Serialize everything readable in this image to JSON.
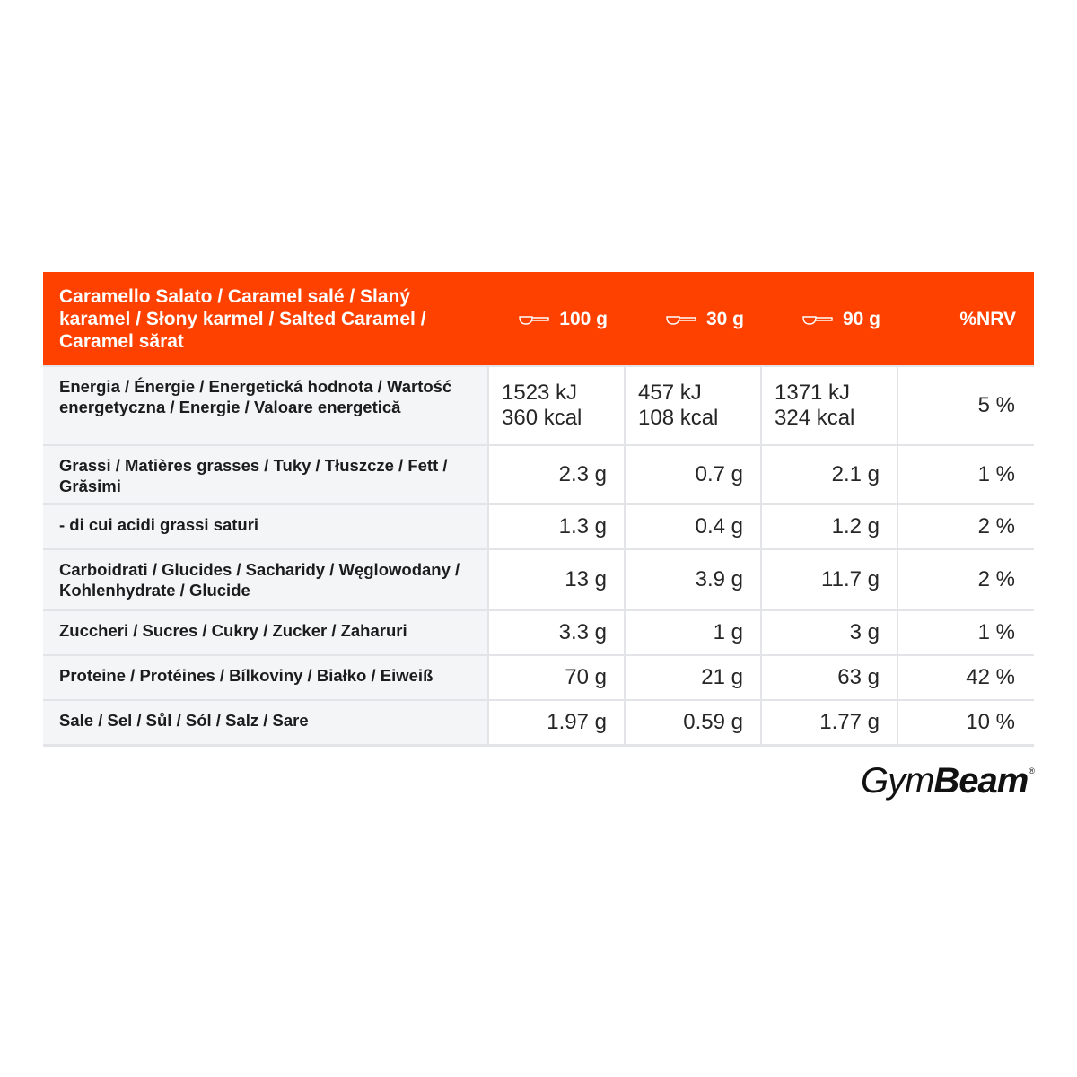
{
  "header": {
    "product": "Caramello Salato / Caramel salé / Slaný karamel / Słony karmel / Salted Caramel / Caramel sărat",
    "col1": "100 g",
    "col2": "30 g",
    "col3": "90 g",
    "col4": "%NRV",
    "serving_icon": "scoop-icon"
  },
  "rows": [
    {
      "label": "Energia / Énergie / Energetická hodnota / Wartość energetyczna / Energie / Valoare energetică",
      "v1a": "1523 kJ",
      "v1b": "360 kcal",
      "v2a": "457 kJ",
      "v2b": "108 kcal",
      "v3a": "1371 kJ",
      "v3b": "324 kcal",
      "nrv": "5 %"
    },
    {
      "label": "Grassi / Matières grasses / Tuky / Tłuszcze / Fett / Grăsimi",
      "v1": "2.3 g",
      "v2": "0.7 g",
      "v3": "2.1 g",
      "nrv": "1 %"
    },
    {
      "label": "- di cui acidi grassi saturi",
      "v1": "1.3 g",
      "v2": "0.4 g",
      "v3": "1.2 g",
      "nrv": "2 %"
    },
    {
      "label": "Carboidrati / Glucides / Sacharidy / Węglowodany / Kohlenhydrate / Glucide",
      "v1": "13 g",
      "v2": "3.9 g",
      "v3": "11.7 g",
      "nrv": "2 %"
    },
    {
      "label": "Zuccheri / Sucres / Cukry / Zucker / Zaharuri",
      "v1": "3.3 g",
      "v2": "1 g",
      "v3": "3 g",
      "nrv": "1 %"
    },
    {
      "label": "Proteine / Protéines / Bílkoviny / Białko / Eiweiß",
      "v1": "70 g",
      "v2": "21 g",
      "v3": "63 g",
      "nrv": "42 %"
    },
    {
      "label": "Sale / Sel / Sůl / Sól / Salz / Sare",
      "v1": "1.97 g",
      "v2": "0.59 g",
      "v3": "1.77 g",
      "nrv": "10 %"
    }
  ],
  "brand": {
    "part1": "Gym",
    "part2": "Beam",
    "mark": "®"
  },
  "colors": {
    "accent": "#ff4100",
    "label_bg": "#f4f5f7",
    "border": "#e3e4e7"
  }
}
